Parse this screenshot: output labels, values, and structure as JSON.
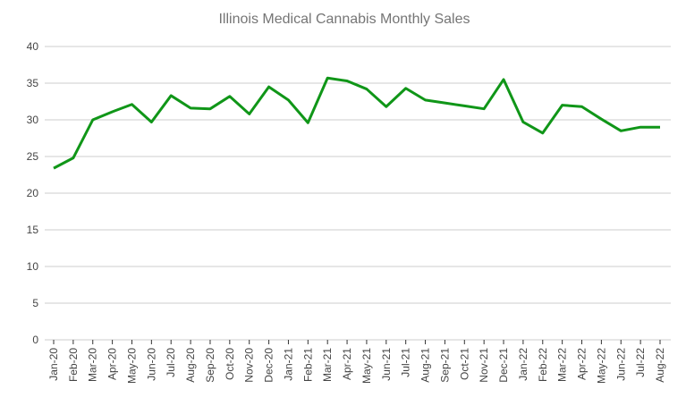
{
  "chart_data": {
    "type": "line",
    "title": "Illinois Medical Cannabis Monthly Sales",
    "xlabel": "",
    "ylabel": "",
    "ylim": [
      0,
      40
    ],
    "yticks": [
      "0",
      "5",
      "10",
      "15",
      "20",
      "25",
      "30",
      "35",
      "40"
    ],
    "grid": true,
    "line_color": "#109618",
    "categories": [
      "Jan-20",
      "Feb-20",
      "Mar-20",
      "Apr-20",
      "May-20",
      "Jun-20",
      "Jul-20",
      "Aug-20",
      "Sep-20",
      "Oct-20",
      "Nov-20",
      "Dec-20",
      "Jan-21",
      "Feb-21",
      "Mar-21",
      "Apr-21",
      "May-21",
      "Jun-21",
      "Jul-21",
      "Aug-21",
      "Sep-21",
      "Oct-21",
      "Nov-21",
      "Dec-21",
      "Jan-22",
      "Feb-22",
      "Mar-22",
      "Apr-22",
      "May-22",
      "Jun-22",
      "Jul-22",
      "Aug-22"
    ],
    "values": [
      23.4,
      24.8,
      30.0,
      31.1,
      32.1,
      29.7,
      33.3,
      31.6,
      31.5,
      33.2,
      30.8,
      34.5,
      32.7,
      29.6,
      35.7,
      35.3,
      34.2,
      31.8,
      34.3,
      32.7,
      32.3,
      31.9,
      31.5,
      35.5,
      29.7,
      28.2,
      32.0,
      31.8,
      30.1,
      28.5,
      29.0,
      29.0
    ]
  }
}
